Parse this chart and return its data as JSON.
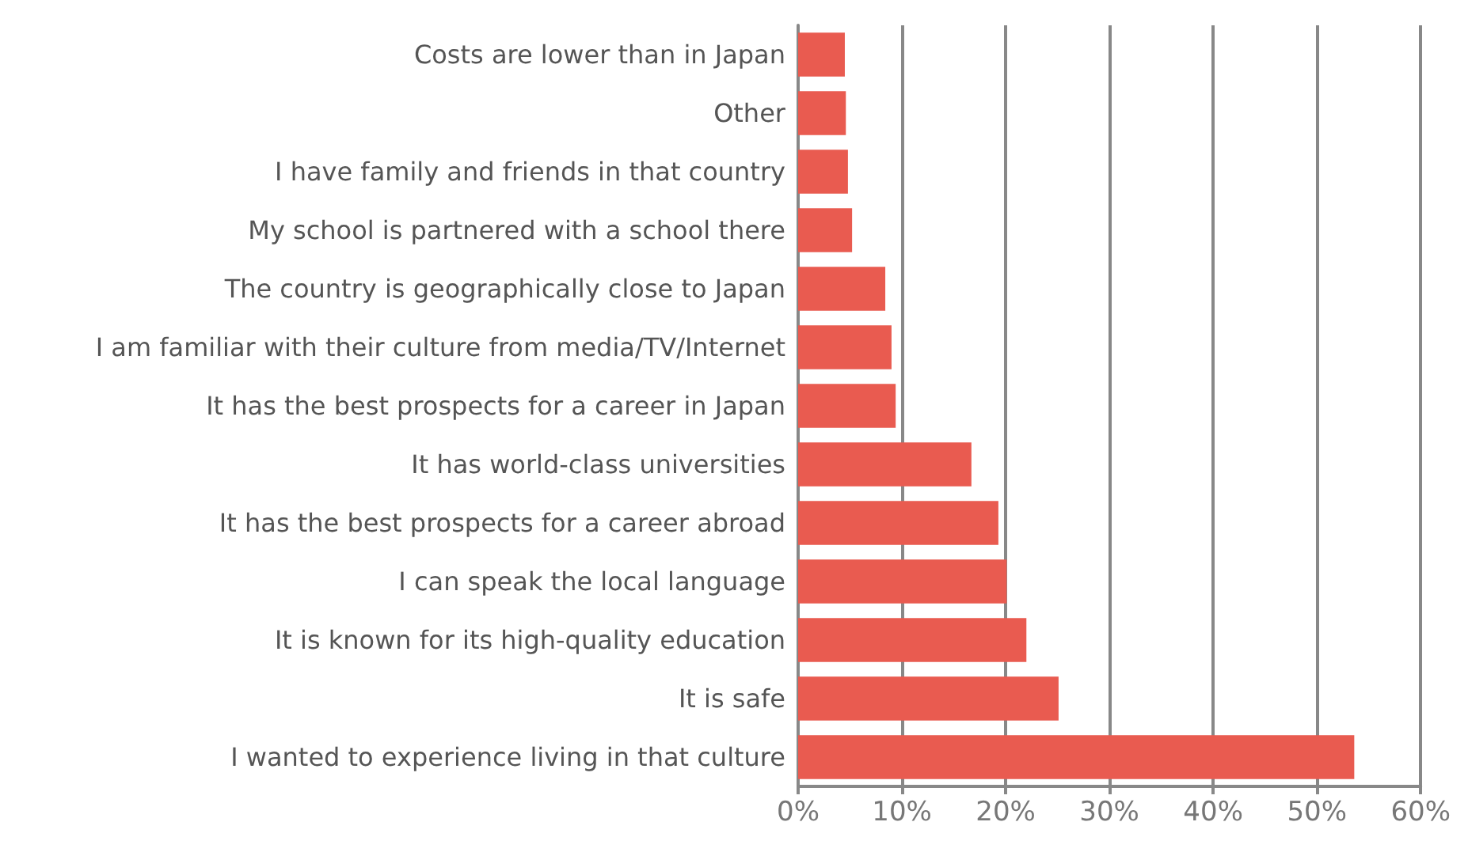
{
  "chart_data": {
    "type": "bar",
    "orientation": "horizontal",
    "categories": [
      "Costs are lower than in Japan",
      "Other",
      "I have family and friends in that country",
      "My school is partnered with a school there",
      "The country is geographically close to Japan",
      "I am familiar with their culture from media/TV/Internet",
      "It has the best prospects for a career in Japan",
      "It has world-class universities",
      "It has the best prospects for a career abroad",
      "I can speak the local language",
      "It is known for its high-quality education",
      "It is safe",
      "I wanted to experience living in that culture"
    ],
    "values": [
      4.5,
      4.6,
      4.8,
      5.2,
      8.4,
      9.0,
      9.4,
      16.7,
      19.3,
      20.1,
      22.0,
      25.1,
      53.6
    ],
    "color": "#e95b50",
    "xlim": [
      0,
      60
    ],
    "xticks": [
      {
        "value": 0,
        "label": "0%"
      },
      {
        "value": 10,
        "label": "10%"
      },
      {
        "value": 20,
        "label": "20%"
      },
      {
        "value": 30,
        "label": "30%"
      },
      {
        "value": 40,
        "label": "40%"
      },
      {
        "value": 50,
        "label": "50%"
      },
      {
        "value": 60,
        "label": "60%"
      }
    ],
    "grid": "x"
  }
}
